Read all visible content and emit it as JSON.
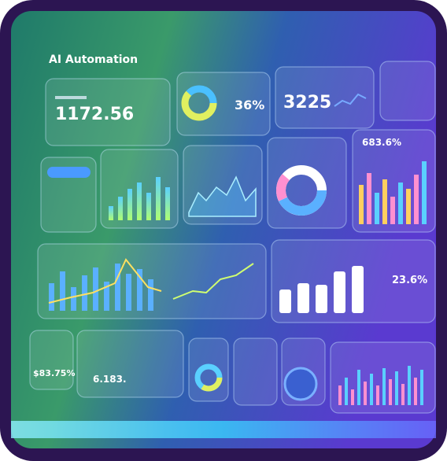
{
  "header": {
    "title": "AI Automation"
  },
  "widgets": {
    "revenue": "1172.56",
    "donut_percent": "36%",
    "count": "3225",
    "growth": "683.6%",
    "rate": "23.6%",
    "share": "$83.75%",
    "total": "6.183."
  }
}
